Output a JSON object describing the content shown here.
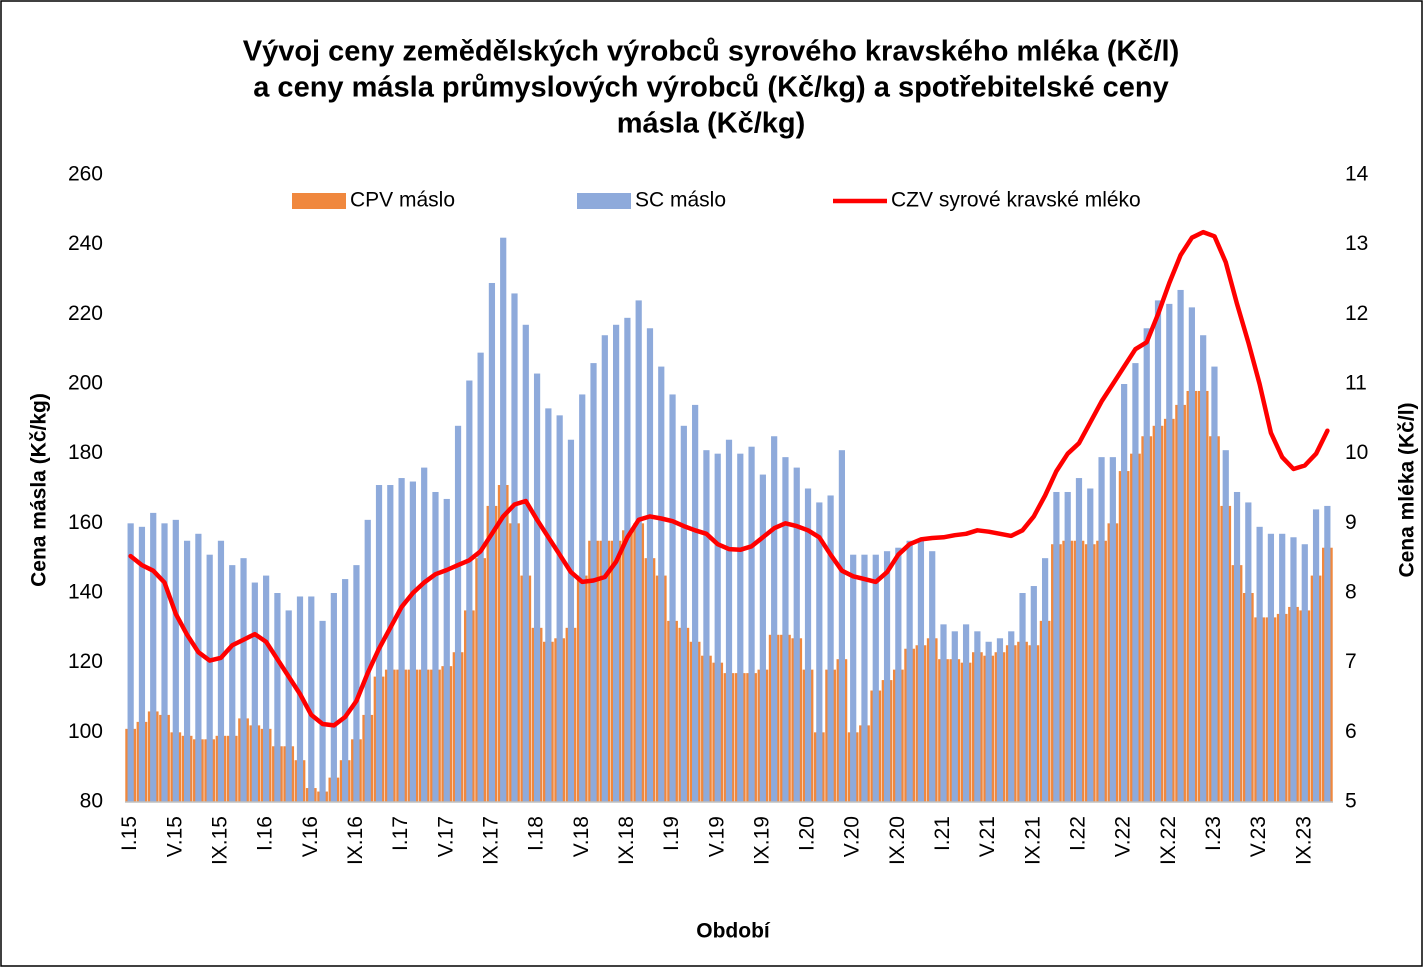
{
  "chart_data": {
    "type": "bar_line",
    "title": [
      "Vývoj ceny zemědělských výrobců syrového kravského mléka (Kč/l)",
      "a  ceny másla průmyslových výrobců (Kč/kg) a spotřebitelské ceny",
      "másla (Kč/kg)"
    ],
    "x_label": "Období",
    "y_label": "Cena másla (Kč/kg)",
    "y2_label": "Cena mléka (Kč/l)",
    "categories": [
      "I.15",
      null,
      null,
      null,
      "V.15",
      null,
      null,
      null,
      "IX.15",
      null,
      null,
      null,
      "I.16",
      null,
      null,
      null,
      "V.16",
      null,
      null,
      null,
      "IX.16",
      null,
      null,
      null,
      "I.17",
      null,
      null,
      null,
      "V.17",
      null,
      null,
      null,
      "IX.17",
      null,
      null,
      null,
      "I.18",
      null,
      null,
      null,
      "V.18",
      null,
      null,
      null,
      "IX.18",
      null,
      null,
      null,
      "I.19",
      null,
      null,
      null,
      "V.19",
      null,
      null,
      null,
      "IX.19",
      null,
      null,
      null,
      "I.20",
      null,
      null,
      null,
      "V.20",
      null,
      null,
      null,
      "IX.20",
      null,
      null,
      null,
      "I.21",
      null,
      null,
      null,
      "V.21",
      null,
      null,
      null,
      "IX.21",
      null,
      null,
      null,
      "I.22",
      null,
      null,
      null,
      "V.22",
      null,
      null,
      null,
      "IX.22",
      null,
      null,
      null,
      "I.23",
      null,
      null,
      null,
      "V.23",
      null,
      null,
      null,
      "IX.23",
      null,
      null
    ],
    "series": [
      {
        "name": "CPV máslo",
        "color": "#f0883e",
        "kind": "bar",
        "values": [
          101,
          103,
          106,
          105,
          100,
          99,
          98,
          98,
          99,
          99,
          104,
          102,
          101,
          96,
          96,
          92,
          84,
          83,
          87,
          92,
          98,
          105,
          116,
          118,
          118,
          118,
          118,
          118,
          119,
          123,
          135,
          150,
          165,
          171,
          160,
          145,
          130,
          126,
          127,
          130,
          145,
          155,
          155,
          155,
          158,
          160,
          150,
          145,
          132,
          130,
          126,
          122,
          120,
          117,
          117,
          117,
          118,
          128,
          128,
          127,
          118,
          100,
          118,
          121,
          100,
          102,
          112,
          115,
          118,
          124,
          125,
          127,
          121,
          121,
          120,
          123,
          122,
          123,
          125,
          126,
          125,
          132,
          154,
          155,
          155,
          154,
          155,
          160,
          175,
          180,
          185,
          188,
          190,
          194,
          198,
          198,
          185,
          165,
          148,
          140,
          133,
          133,
          134,
          136,
          135,
          145,
          153
        ]
      },
      {
        "name": "SC máslo",
        "color": "#8eaadb",
        "kind": "bar",
        "values": [
          160,
          159,
          163,
          160,
          161,
          155,
          157,
          151,
          155,
          148,
          150,
          143,
          145,
          140,
          135,
          139,
          139,
          132,
          140,
          144,
          148,
          161,
          171,
          171,
          173,
          172,
          176,
          169,
          167,
          188,
          201,
          209,
          229,
          242,
          226,
          217,
          203,
          193,
          191,
          184,
          197,
          206,
          214,
          217,
          219,
          224,
          216,
          205,
          197,
          188,
          194,
          181,
          180,
          184,
          180,
          182,
          174,
          185,
          179,
          176,
          170,
          166,
          168,
          181,
          151,
          151,
          151,
          152,
          153,
          155,
          155,
          152,
          131,
          129,
          131,
          129,
          126,
          127,
          129,
          140,
          142,
          150,
          169,
          169,
          173,
          170,
          179,
          179,
          200,
          206,
          216,
          224,
          223,
          227,
          222,
          214,
          205,
          181,
          169,
          166,
          159,
          157,
          157,
          156,
          154,
          164,
          165
        ]
      },
      {
        "name": "CZV syrové kravské mléko",
        "color": "#ff0000",
        "kind": "line",
        "axis": "y2",
        "values": [
          8.53,
          8.4,
          8.32,
          8.15,
          7.7,
          7.4,
          7.15,
          7.03,
          7.07,
          7.25,
          7.33,
          7.41,
          7.3,
          7.05,
          6.8,
          6.55,
          6.25,
          6.12,
          6.1,
          6.22,
          6.45,
          6.85,
          7.2,
          7.5,
          7.8,
          8.0,
          8.15,
          8.27,
          8.33,
          8.4,
          8.47,
          8.6,
          8.85,
          9.1,
          9.27,
          9.32,
          9.05,
          8.8,
          8.55,
          8.3,
          8.16,
          8.18,
          8.23,
          8.45,
          8.8,
          9.05,
          9.1,
          9.07,
          9.03,
          8.96,
          8.9,
          8.85,
          8.7,
          8.63,
          8.62,
          8.67,
          8.8,
          8.93,
          9.0,
          8.96,
          8.9,
          8.8,
          8.55,
          8.32,
          8.24,
          8.2,
          8.16,
          8.3,
          8.55,
          8.7,
          8.77,
          8.79,
          8.8,
          8.83,
          8.85,
          8.9,
          8.88,
          8.85,
          8.82,
          8.9,
          9.1,
          9.4,
          9.75,
          10.0,
          10.15,
          10.45,
          10.75,
          11.0,
          11.25,
          11.5,
          11.6,
          12.0,
          12.45,
          12.85,
          13.1,
          13.18,
          13.12,
          12.75,
          12.15,
          11.6,
          11.0,
          10.3,
          9.95,
          9.78,
          9.83,
          10.0,
          10.33
        ]
      }
    ],
    "ylim": [
      80,
      260
    ],
    "yticks": [
      80,
      100,
      120,
      140,
      160,
      180,
      200,
      220,
      240,
      260
    ],
    "y2lim": [
      5,
      14
    ],
    "y2ticks": [
      5,
      6,
      7,
      8,
      9,
      10,
      11,
      12,
      13,
      14
    ],
    "legend": "top"
  }
}
